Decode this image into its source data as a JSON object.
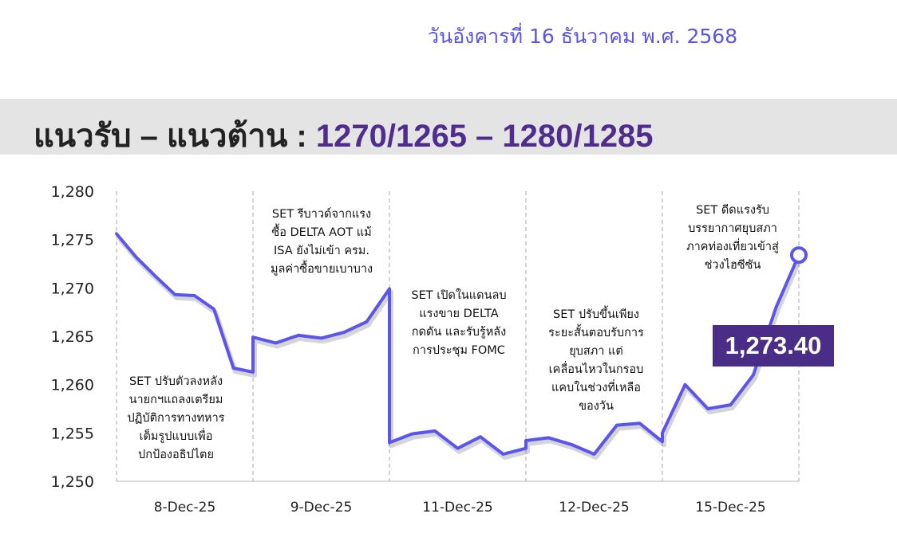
{
  "header": {
    "date_text": "วันอังคารที่ 16 ธันวาคม พ.ศ. 2568",
    "title_prefix": "แนวรับ – แนวต้าน :",
    "title_levels": "1270/1265 – 1280/1285"
  },
  "annotations": [
    "SET ปรับตัวลงหลัง\nนายกฯแถลงเตรียม\nปฏิบัติการทางทหาร\nเต็มรูปแบบเพื่อ\nปกป้องอธิปไตย",
    "SET รีบาวด์จากแรง\nซื้อ DELTA AOT แม้\nISA ยังไม่เข้า ครม.\nมูลค่าซื้อขายเบาบาง",
    "SET เปิดในแดนลบ\nแรงขาย DELTA\nกดดัน และรับรู้หลัง\nการประชุม FOMC",
    "SET ปรับขึ้นเพียง\nระยะสั้นตอบรับการ\nยุบสภา แต่\nเคลื่อนไหวในกรอบ\nแคบในช่วงที่เหลือ\nของวัน",
    "SET ดีดแรงรับ\nบรรยากาศยุบสภา\nภาคท่องเที่ยวเข้าสู่\nช่วงไฮซีซัน"
  ],
  "last_value_label": "1,273.40",
  "colors": {
    "line": "#5b55ee",
    "badge": "#4a2d86",
    "levels": "#4e2d8c"
  },
  "chart_data": {
    "type": "line",
    "categories": [
      "8-Dec-25",
      "9-Dec-25",
      "11-Dec-25",
      "12-Dec-25",
      "15-Dec-25"
    ],
    "ylim": [
      1250,
      1280
    ],
    "yticks": [
      "1,250",
      "1,255",
      "1,260",
      "1,265",
      "1,270",
      "1,275",
      "1,280"
    ],
    "grid": "vertical dashed session dividers",
    "series": [
      {
        "values": [
          [
            1275.6,
            1273.2,
            1271.2,
            1269.3,
            1269.2,
            1267.8,
            1261.7,
            1261.3
          ],
          [
            1264.9,
            1264.3,
            1265.1,
            1264.8,
            1265.4,
            1266.5,
            1269.9
          ],
          [
            1254.0,
            1254.9,
            1255.2,
            1253.4,
            1254.6,
            1252.8,
            1253.4
          ],
          [
            1254.2,
            1254.5,
            1253.8,
            1252.8,
            1255.8,
            1256.0,
            1254.1
          ],
          [
            1255.0,
            1260.0,
            1257.5,
            1257.9,
            1261.0,
            1268.0,
            1273.4
          ]
        ]
      }
    ]
  }
}
